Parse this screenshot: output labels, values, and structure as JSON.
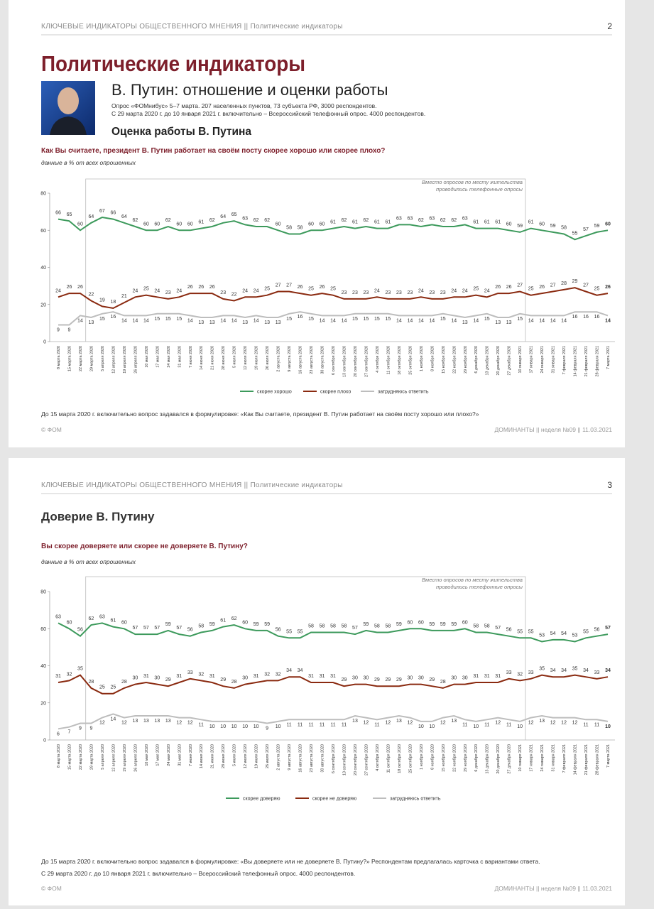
{
  "pages": [
    {
      "header": "КЛЮЧЕВЫЕ ИНДИКАТОРЫ ОБЩЕСТВЕННОГО МНЕНИЯ  ||  Политические индикаторы",
      "page_number": 2,
      "title": "Политические индикаторы",
      "subtitle": "В. Путин: отношение и оценки работы",
      "survey": [
        "Опрос «ФОМнибус» 5–7 марта. 207 населенных пунктов, 73 субъекта РФ, 3000 респондентов.",
        "С 29 марта 2020 г. до 10 января 2021 г. включительно – Всероссийский телефонный опрос. 4000 респондентов."
      ],
      "section": "Оценка работы В. Путина",
      "question": "Как Вы считаете, президент В. Путин работает на своём посту скорее хорошо или скорее плохо?",
      "units": "данные в % от всех опрошенных",
      "footnotes": [
        "До 15 марта 2020 г. включительно вопрос задавался в формулировке: «Как Вы считаете, президент В. Путин работает на своём посту хорошо или плохо?»"
      ],
      "footer_left": "© ФОМ",
      "footer_right": "ДОМИНАНТЫ  ||  неделя №09  ||  11.03.2021"
    },
    {
      "header": "КЛЮЧЕВЫЕ ИНДИКАТОРЫ ОБЩЕСТВЕННОГО МНЕНИЯ  ||  Политические индикаторы",
      "page_number": 3,
      "title": "Доверие В. Путину",
      "question": "Вы скорее доверяете или скорее не доверяете В. Путину?",
      "units": "данные в % от всех опрошенных",
      "footnotes": [
        "До 15 марта 2020 г. включительно вопрос задавался в формулировке: «Вы доверяете или не доверяете В. Путину?» Респондентам предлагалась карточка с вариантами ответа.",
        "С 29 марта 2020 г. до 10 января 2021 г. включительно – Всероссийский телефонный опрос. 4000 респондентов."
      ],
      "footer_left": "© ФОМ",
      "footer_right": "ДОМИНАНТЫ  ||  неделя №09  ||  11.03.2021"
    }
  ],
  "chart_data": [
    {
      "type": "line",
      "ylim": [
        0,
        80
      ],
      "yticks": [
        0,
        20,
        40,
        60,
        80
      ],
      "legend": "bottom",
      "annotation": [
        "Вместо опросов по месту жительства",
        "проводились телефонные опросы"
      ],
      "categories": [
        "8 марта 2020",
        "15 марта 2020",
        "22 марта 2020",
        "29 марта 2020",
        "5 апреля 2020",
        "12 апреля 2020",
        "19 апреля 2020",
        "26 апреля 2020",
        "10 мая 2020",
        "17 мая 2020",
        "24 мая 2020",
        "31 мая 2020",
        "7 июня 2020",
        "14 июня 2020",
        "21 июня 2020",
        "28 июня 2020",
        "5 июля 2020",
        "12 июля 2020",
        "19 июля 2020",
        "26 июля 2020",
        "2 августа 2020",
        "9 августа 2020",
        "16 августа 2020",
        "23 августа 2020",
        "30 августа 2020",
        "6 сентября 2020",
        "13 сентября 2020",
        "20 сентября 2020",
        "27 сентября 2020",
        "4 октября 2020",
        "11 октября 2020",
        "18 октября 2020",
        "25 октября 2020",
        "1 ноября 2020",
        "8 ноября 2020",
        "15 ноября 2020",
        "22 ноября 2020",
        "29 ноября 2020",
        "6 декабря 2020",
        "13 декабря 2020",
        "20 декабря 2020",
        "27 декабря 2020",
        "10 января 2021",
        "17 января 2021",
        "24 января 2021",
        "31 января 2021",
        "7 февраля 2021",
        "14 февраля 2021",
        "21 февраля 2021",
        "28 февраля 2021",
        "7 марта 2021"
      ],
      "series": [
        {
          "name": "скорее хорошо",
          "color": "#3d9a5c",
          "values": [
            66,
            65,
            60,
            64,
            67,
            66,
            64,
            62,
            60,
            60,
            62,
            60,
            60,
            61,
            62,
            64,
            65,
            63,
            62,
            62,
            60,
            58,
            58,
            60,
            60,
            61,
            62,
            61,
            62,
            61,
            61,
            63,
            63,
            62,
            63,
            62,
            62,
            63,
            61,
            61,
            61,
            60,
            59,
            61,
            60,
            59,
            58,
            55,
            57,
            59,
            60
          ]
        },
        {
          "name": "скорее плохо",
          "color": "#8a2a10",
          "values": [
            24,
            26,
            26,
            22,
            19,
            18,
            21,
            24,
            25,
            24,
            23,
            24,
            26,
            26,
            26,
            23,
            22,
            24,
            24,
            25,
            27,
            27,
            26,
            25,
            26,
            25,
            23,
            23,
            23,
            24,
            23,
            23,
            23,
            24,
            23,
            23,
            24,
            24,
            25,
            24,
            26,
            26,
            27,
            25,
            26,
            27,
            28,
            29,
            27,
            25,
            26
          ]
        },
        {
          "name": "затрудняюсь ответить",
          "color": "#bdbdbd",
          "values": [
            9,
            9,
            14,
            13,
            15,
            16,
            14,
            14,
            14,
            15,
            15,
            15,
            14,
            13,
            13,
            14,
            14,
            13,
            14,
            13,
            13,
            15,
            16,
            15,
            14,
            14,
            14,
            15,
            15,
            15,
            15,
            14,
            14,
            14,
            14,
            15,
            14,
            13,
            14,
            15,
            13,
            13,
            15,
            14,
            14,
            14,
            14,
            16,
            16,
            16,
            14
          ]
        }
      ]
    },
    {
      "type": "line",
      "ylim": [
        0,
        80
      ],
      "yticks": [
        0,
        20,
        40,
        60,
        80
      ],
      "legend": "bottom",
      "annotation": [
        "Вместо опросов по месту жительства",
        "проводились телефонные опросы"
      ],
      "categories": [
        "8 марта 2020",
        "15 марта 2020",
        "22 марта 2020",
        "29 марта 2020",
        "5 апреля 2020",
        "12 апреля 2020",
        "19 апреля 2020",
        "26 апреля 2020",
        "10 мая 2020",
        "17 мая 2020",
        "24 мая 2020",
        "31 мая 2020",
        "7 июня 2020",
        "14 июня 2020",
        "21 июня 2020",
        "28 июня 2020",
        "5 июля 2020",
        "12 июля 2020",
        "19 июля 2020",
        "26 июля 2020",
        "2 августа 2020",
        "9 августа 2020",
        "16 августа 2020",
        "23 августа 2020",
        "30 августа 2020",
        "6 сентября 2020",
        "13 сентября 2020",
        "20 сентября 2020",
        "27 сентября 2020",
        "4 октября 2020",
        "11 октября 2020",
        "18 октября 2020",
        "25 октября 2020",
        "1 ноября 2020",
        "8 ноября 2020",
        "15 ноября 2020",
        "22 ноября 2020",
        "29 ноября 2020",
        "6 декабря 2020",
        "13 декабря 2020",
        "20 декабря 2020",
        "27 декабря 2020",
        "10 января 2021",
        "17 января 2021",
        "24 января 2021",
        "31 января 2021",
        "7 февраля 2021",
        "14 февраля 2021",
        "21 февраля 2021",
        "28 февраля 2021",
        "7 марта 2021"
      ],
      "series": [
        {
          "name": "скорее доверяю",
          "color": "#3d9a5c",
          "values": [
            63,
            60,
            56,
            62,
            63,
            61,
            60,
            57,
            57,
            57,
            59,
            57,
            56,
            58,
            59,
            61,
            62,
            60,
            59,
            59,
            56,
            55,
            55,
            58,
            58,
            58,
            58,
            57,
            59,
            58,
            58,
            59,
            60,
            60,
            59,
            59,
            59,
            60,
            58,
            58,
            57,
            56,
            55,
            55,
            53,
            54,
            54,
            53,
            55,
            56,
            57
          ]
        },
        {
          "name": "скорее не доверяю",
          "color": "#8a2a10",
          "values": [
            31,
            32,
            35,
            28,
            25,
            25,
            28,
            30,
            31,
            30,
            29,
            31,
            33,
            32,
            31,
            29,
            28,
            30,
            31,
            32,
            32,
            34,
            34,
            31,
            31,
            31,
            29,
            30,
            30,
            29,
            29,
            29,
            30,
            30,
            29,
            28,
            30,
            30,
            31,
            31,
            31,
            33,
            32,
            33,
            35,
            34,
            34,
            35,
            34,
            33,
            34
          ]
        },
        {
          "name": "затрудняюсь ответить",
          "color": "#bdbdbd",
          "values": [
            6,
            7,
            9,
            9,
            12,
            14,
            12,
            13,
            13,
            13,
            13,
            12,
            12,
            11,
            10,
            10,
            10,
            10,
            10,
            9,
            10,
            11,
            11,
            11,
            11,
            11,
            11,
            13,
            12,
            11,
            12,
            13,
            12,
            10,
            10,
            12,
            13,
            11,
            10,
            11,
            12,
            11,
            10,
            12,
            13,
            12,
            12,
            12,
            11,
            11,
            10
          ]
        }
      ]
    }
  ]
}
